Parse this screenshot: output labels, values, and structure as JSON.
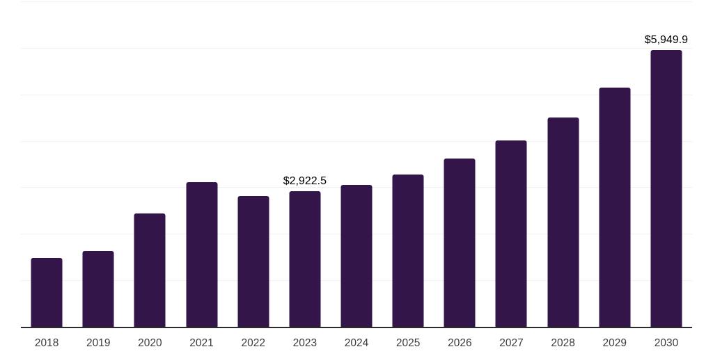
{
  "chart_data": {
    "type": "bar",
    "title": "",
    "xlabel": "",
    "ylabel": "",
    "categories": [
      "2018",
      "2019",
      "2020",
      "2021",
      "2022",
      "2023",
      "2024",
      "2025",
      "2026",
      "2027",
      "2028",
      "2029",
      "2030"
    ],
    "values": [
      1480,
      1628,
      2440,
      3117,
      2805,
      2922.5,
      3057,
      3281,
      3626,
      4012,
      4505,
      5146,
      5949.9
    ],
    "value_labels": [
      null,
      null,
      null,
      null,
      null,
      "$2,922.5",
      null,
      null,
      null,
      null,
      null,
      null,
      "$5,949.9"
    ],
    "ylim": [
      0,
      7000
    ],
    "gridlines": {
      "visible": true,
      "interval": 1000
    },
    "legend": "none",
    "value_unit": "USD million"
  },
  "colors": {
    "bar": "#33154A",
    "gridline": "#f1f1f1",
    "axis_line": "#2b2b2b",
    "tick_label": "#3c3c3c",
    "value_label": "#000000",
    "background": "#ffffff"
  }
}
